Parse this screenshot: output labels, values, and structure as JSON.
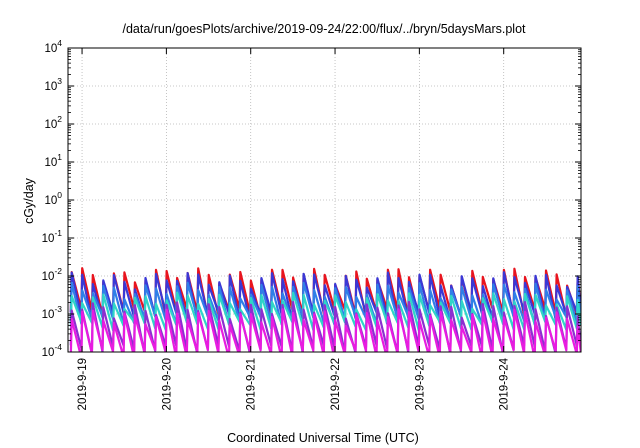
{
  "chart_data": {
    "type": "line",
    "title": "/data/run/goesPlots/archive/2019-09-24/22:00/flux/../bryn/5daysMars.plot",
    "xlabel": "Coordinated Universal Time (UTC)",
    "ylabel": "cGy/day",
    "yscale": "log",
    "ylim": [
      0.0001,
      10000
    ],
    "xlim": [
      "2019-09-18T20:00",
      "2019-09-24T22:00"
    ],
    "grid": true,
    "y_ticks": [
      {
        "base": "10",
        "exp": "-4"
      },
      {
        "base": "10",
        "exp": "-3"
      },
      {
        "base": "10",
        "exp": "-2"
      },
      {
        "base": "10",
        "exp": "-1"
      },
      {
        "base": "10",
        "exp": "0"
      },
      {
        "base": "10",
        "exp": "1"
      },
      {
        "base": "10",
        "exp": "2"
      },
      {
        "base": "10",
        "exp": "3"
      },
      {
        "base": "10",
        "exp": "4"
      }
    ],
    "x_ticks": [
      "2019-9-19",
      "2019-9-20",
      "2019-9-21",
      "2019-9-22",
      "2019-9-23",
      "2019-9-24"
    ],
    "x_tick_values": [
      "2019-09-19T00:00",
      "2019-09-20T00:00",
      "2019-09-21T00:00",
      "2019-09-22T00:00",
      "2019-09-23T00:00",
      "2019-09-24T00:00"
    ],
    "sawtooth_period_hours": 3,
    "series": [
      {
        "color": "#e8141e",
        "peak": 0.011,
        "trough": 0.0011
      },
      {
        "color": "#3a38d6",
        "peak": 0.0085,
        "trough": 0.0009
      },
      {
        "color": "#2f7fe8",
        "peak": 0.0045,
        "trough": 0.0007
      },
      {
        "color": "#2fd5c8",
        "peak": 0.0025,
        "trough": 0.0005
      },
      {
        "color": "#8c2fd0",
        "peak": 0.0014,
        "trough": 0.00012
      },
      {
        "color": "#e81ce0",
        "peak": 0.0009,
        "trough": 9e-05
      }
    ]
  }
}
